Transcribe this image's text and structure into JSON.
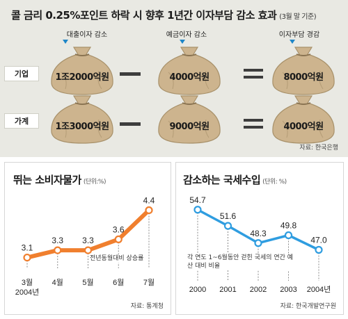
{
  "top": {
    "title": "콜 금리 0.25%포인트 하락 시 향후 1년간 이자부담 감소 효과",
    "note": "(3월 말 기준)",
    "columns": [
      "대출이자 감소",
      "예금이자 감소",
      "이자부담 경감"
    ],
    "rows": [
      {
        "label": "기업",
        "values": [
          "1조2000억원",
          "4000억원",
          "8000억원"
        ]
      },
      {
        "label": "가계",
        "values": [
          "1조3000억원",
          "9000억원",
          "4000억원"
        ]
      }
    ],
    "source": "자료: 한국은행"
  },
  "chart_data": [
    {
      "type": "line",
      "title": "뛰는 소비자물가",
      "unit": "(단위:%)",
      "categories": [
        "3월",
        "4월",
        "5월",
        "6월",
        "7월"
      ],
      "year_label": "2004년",
      "series": [
        {
          "values": [
            3.1,
            3.3,
            3.3,
            3.6,
            4.4
          ]
        }
      ],
      "value_labels": [
        "3.1",
        "3.3",
        "3.3",
        "3.6",
        "4.4"
      ],
      "annotation": "전년동월대비 상승률",
      "ylim": [
        2.5,
        4.6
      ],
      "color": "#f07f2e",
      "source": "자료: 통계청"
    },
    {
      "type": "line",
      "title": "감소하는 국세수입",
      "unit": "(단위: %)",
      "categories": [
        "2000",
        "2001",
        "2002",
        "2003",
        "2004년"
      ],
      "series": [
        {
          "values": [
            54.7,
            51.6,
            48.3,
            49.8,
            47.0
          ]
        }
      ],
      "value_labels": [
        "54.7",
        "51.6",
        "48.3",
        "49.8",
        "47.0"
      ],
      "annotation": "각 연도 1~6월동안 걷힌 국세의 연간 예산 대비 비율",
      "ylim": [
        40,
        56
      ],
      "color": "#2f9de0",
      "source": "자료: 한국개발연구원"
    }
  ],
  "colors": {
    "orange": "#f07f2e",
    "blue": "#2f9de0",
    "arrow": "#1e86c8",
    "bag": "#cdb48e"
  }
}
